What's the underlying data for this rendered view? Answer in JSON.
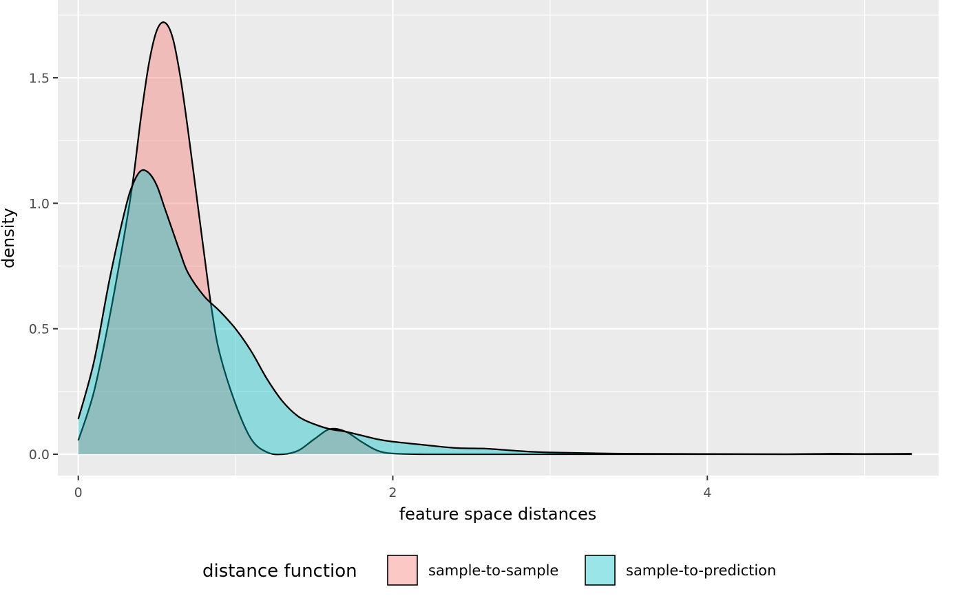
{
  "chart_data": {
    "type": "area",
    "xlabel": "feature space distances",
    "ylabel": "density",
    "xlim": [
      -0.13,
      5.47
    ],
    "ylim": [
      -0.085,
      1.81
    ],
    "x_ticks": [
      0,
      2,
      4
    ],
    "x_tick_labels": [
      "0",
      "2",
      "4"
    ],
    "y_ticks": [
      0.0,
      0.5,
      1.0,
      1.5
    ],
    "y_tick_labels": [
      "0.0",
      "0.5",
      "1.0",
      "1.5"
    ],
    "grid": true,
    "legend": {
      "title": "distance function",
      "position": "bottom",
      "entries": [
        "sample-to-sample",
        "sample-to-prediction"
      ]
    },
    "series": [
      {
        "name": "sample-to-sample",
        "color": "#F8766D",
        "x": [
          0,
          0.1,
          0.2,
          0.3,
          0.35,
          0.4,
          0.45,
          0.5,
          0.55,
          0.6,
          0.65,
          0.7,
          0.75,
          0.8,
          0.85,
          0.9,
          1.0,
          1.1,
          1.2,
          1.3,
          1.4,
          1.5,
          1.6,
          1.7,
          1.8,
          1.9,
          2.0,
          2.2,
          2.5,
          3.0,
          3.5,
          4.0,
          4.5,
          5.0,
          5.3
        ],
        "y": [
          0.055,
          0.25,
          0.55,
          0.9,
          1.1,
          1.35,
          1.56,
          1.69,
          1.72,
          1.66,
          1.5,
          1.28,
          1.04,
          0.8,
          0.57,
          0.4,
          0.2,
          0.06,
          0.008,
          0.0,
          0.015,
          0.06,
          0.1,
          0.09,
          0.05,
          0.015,
          0.003,
          0.0,
          0.0,
          0.0,
          0.0,
          0.0,
          0.0,
          0.0,
          0.0
        ]
      },
      {
        "name": "sample-to-prediction",
        "color": "#00BFC4",
        "x": [
          0,
          0.1,
          0.2,
          0.3,
          0.35,
          0.4,
          0.45,
          0.5,
          0.55,
          0.6,
          0.65,
          0.7,
          0.8,
          0.9,
          1.0,
          1.1,
          1.2,
          1.3,
          1.4,
          1.5,
          1.6,
          1.7,
          1.8,
          1.9,
          2.0,
          2.2,
          2.4,
          2.6,
          2.8,
          3.0,
          3.5,
          4.0,
          4.5,
          4.8,
          5.0,
          5.3
        ],
        "y": [
          0.14,
          0.37,
          0.7,
          0.98,
          1.08,
          1.13,
          1.12,
          1.07,
          0.98,
          0.89,
          0.8,
          0.72,
          0.63,
          0.57,
          0.5,
          0.41,
          0.3,
          0.21,
          0.15,
          0.12,
          0.1,
          0.09,
          0.075,
          0.06,
          0.05,
          0.037,
          0.025,
          0.022,
          0.013,
          0.007,
          0.002,
          0.001,
          0.0,
          0.002,
          0.001,
          0.002
        ]
      }
    ]
  }
}
